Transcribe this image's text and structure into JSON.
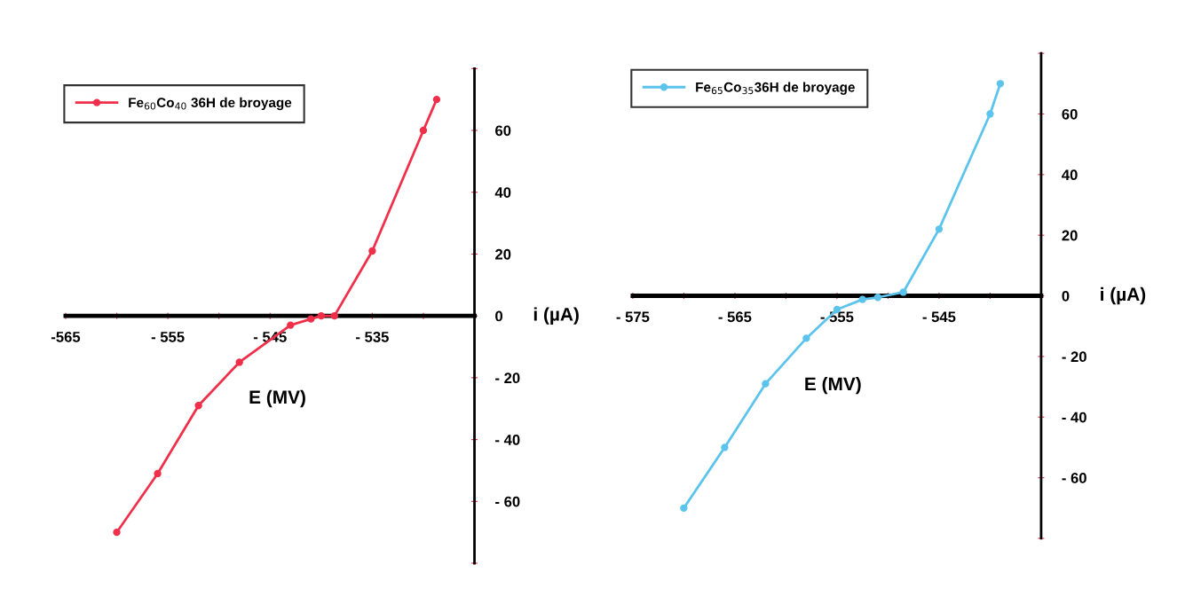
{
  "chart_data": [
    {
      "type": "line",
      "xlabel": "E (MV)",
      "ylabel": "i (µA)",
      "legend": "top left",
      "marker": "circle",
      "line_style": "solid",
      "grid": false,
      "xlim": [
        -565,
        -525
      ],
      "ylim": [
        -80,
        80
      ],
      "xticks": [
        {
          "value": -565,
          "label": "-565"
        },
        {
          "value": -560,
          "label": null
        },
        {
          "value": -555,
          "label": "- 555"
        },
        {
          "value": -550,
          "label": null
        },
        {
          "value": -545,
          "label": "- 545"
        },
        {
          "value": -540,
          "label": null
        },
        {
          "value": -535,
          "label": "- 535"
        },
        {
          "value": -530,
          "label": null
        },
        {
          "value": -525,
          "label": null
        }
      ],
      "yticks": [
        {
          "value": -80,
          "label": null
        },
        {
          "value": -60,
          "label": "- 60"
        },
        {
          "value": -40,
          "label": "- 40"
        },
        {
          "value": -20,
          "label": "- 20"
        },
        0,
        20,
        40,
        60,
        {
          "value": 80,
          "label": null
        }
      ],
      "series": [
        {
          "name": "Fe$_{60}$Co$_{40}$ 36H de broyage",
          "color": "#f0304a",
          "x": [
            -560,
            -556,
            -552,
            -548,
            -543,
            -541,
            -540,
            -538.7,
            -535,
            -530,
            -528.7
          ],
          "values": [
            -70,
            -51,
            -29,
            -15,
            -3,
            -1,
            0,
            0,
            21,
            60,
            70
          ]
        }
      ]
    },
    {
      "type": "line",
      "xlabel": "E (MV)",
      "ylabel": "i (µA)",
      "legend": "top left",
      "marker": "circle",
      "line_style": "solid",
      "grid": false,
      "xlim": [
        -575,
        -535
      ],
      "ylim": [
        -80,
        80
      ],
      "xticks": [
        {
          "value": -575,
          "label": "- 575"
        },
        {
          "value": -570,
          "label": null
        },
        {
          "value": -565,
          "label": "- 565"
        },
        {
          "value": -560,
          "label": null
        },
        {
          "value": -555,
          "label": "- 555"
        },
        {
          "value": -550,
          "label": null
        },
        {
          "value": -545,
          "label": "- 545"
        },
        {
          "value": -540,
          "label": null
        },
        {
          "value": -535,
          "label": null
        }
      ],
      "yticks": [
        {
          "value": -80,
          "label": null
        },
        {
          "value": -60,
          "label": "- 60"
        },
        {
          "value": -40,
          "label": "- 40"
        },
        {
          "value": -20,
          "label": "- 20"
        },
        0,
        20,
        40,
        60,
        {
          "value": 80,
          "label": null
        }
      ],
      "series": [
        {
          "name": "Fe$_{65}$Co$_{35}$36H de broyage",
          "color": "#5cc4ec",
          "x": [
            -570,
            -566,
            -562,
            -558,
            -555,
            -552.5,
            -551,
            -548.5,
            -545,
            -540,
            -539
          ],
          "values": [
            -70,
            -50,
            -29,
            -14,
            -4.5,
            -1.2,
            -0.5,
            1.2,
            22,
            60,
            70
          ]
        }
      ]
    }
  ]
}
